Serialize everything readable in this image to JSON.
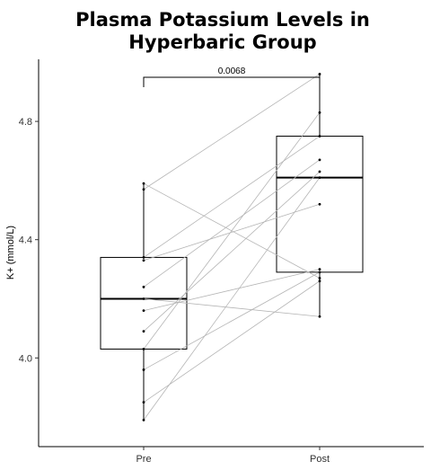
{
  "chart_data": {
    "type": "box",
    "title_lines": [
      "Plasma Potassium Levels in",
      "Hyperbaric Group"
    ],
    "xlabel": "",
    "ylabel": "K+ (mmol/L)",
    "categories": [
      "Pre",
      "Post"
    ],
    "ylim": [
      3.7,
      5.01
    ],
    "yticks": [
      4.0,
      4.4,
      4.8
    ],
    "ytick_labels": [
      "4.0",
      "4.4",
      "4.8"
    ],
    "grid": false,
    "boxes": [
      {
        "category": "Pre",
        "whisker_low": 3.79,
        "q1": 4.03,
        "median": 4.2,
        "q3": 4.34,
        "whisker_high": 4.59
      },
      {
        "category": "Post",
        "whisker_low": 4.14,
        "q1": 4.29,
        "median": 4.61,
        "q3": 4.75,
        "whisker_high": 4.96
      }
    ],
    "paired_points": [
      {
        "pre": 3.79,
        "post": 4.61
      },
      {
        "pre": 3.85,
        "post": 4.26
      },
      {
        "pre": 3.96,
        "post": 4.29
      },
      {
        "pre": 4.03,
        "post": 4.83
      },
      {
        "pre": 4.09,
        "post": 4.63
      },
      {
        "pre": 4.16,
        "post": 4.3
      },
      {
        "pre": 4.2,
        "post": 4.14
      },
      {
        "pre": 4.24,
        "post": 4.67
      },
      {
        "pre": 4.33,
        "post": 4.52
      },
      {
        "pre": 4.34,
        "post": 4.75
      },
      {
        "pre": 4.57,
        "post": 4.96
      },
      {
        "pre": 4.59,
        "post": 4.27
      }
    ],
    "comparison": {
      "from": "Pre",
      "to": "Post",
      "label": "0.0068"
    }
  }
}
